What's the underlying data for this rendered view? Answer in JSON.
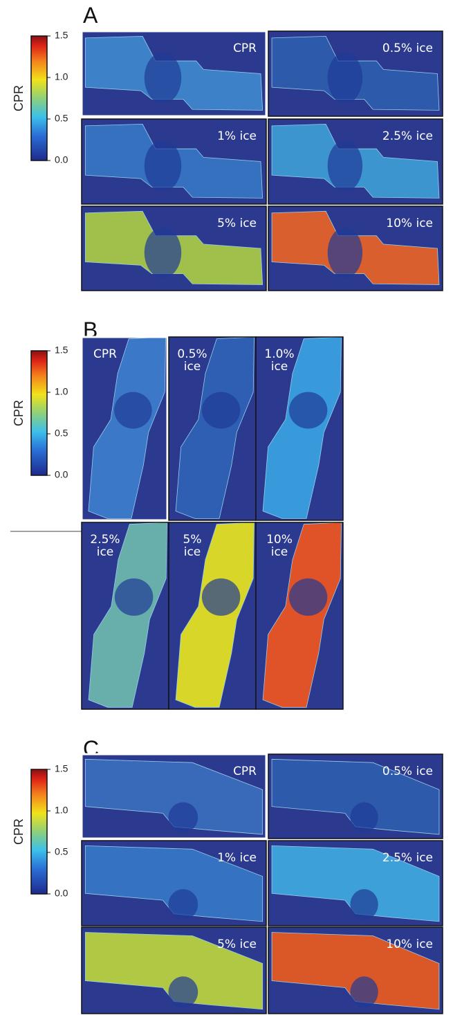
{
  "panels": [
    {
      "label": "A",
      "colorbar": {
        "title": "CPR",
        "ticks": [
          "1.5",
          "1.0",
          "0.5",
          "0.0"
        ]
      },
      "tiles": [
        {
          "label": [
            "CPR"
          ]
        },
        {
          "label": [
            "0.5% ice"
          ]
        },
        {
          "label": [
            "1% ice"
          ]
        },
        {
          "label": [
            "2.5% ice"
          ]
        },
        {
          "label": [
            "5% ice"
          ]
        },
        {
          "label": [
            "10% ice"
          ]
        }
      ]
    },
    {
      "label": "B",
      "colorbar": {
        "title": "CPR",
        "ticks": [
          "1.5",
          "1.0",
          "0.5",
          "0.0"
        ]
      },
      "tiles": [
        {
          "label": [
            "CPR"
          ]
        },
        {
          "label": [
            "0.5%",
            "ice"
          ]
        },
        {
          "label": [
            "1.0%",
            "ice"
          ]
        },
        {
          "label": [
            "2.5%",
            "ice"
          ]
        },
        {
          "label": [
            "5%",
            "ice"
          ]
        },
        {
          "label": [
            "10%",
            "ice"
          ]
        }
      ]
    },
    {
      "label": "C",
      "colorbar": {
        "title": "CPR",
        "ticks": [
          "1.5",
          "1.0",
          "0.5",
          "0.0"
        ]
      },
      "tiles": [
        {
          "label": [
            "CPR"
          ]
        },
        {
          "label": [
            "0.5% ice"
          ]
        },
        {
          "label": [
            "1% ice"
          ]
        },
        {
          "label": [
            "2.5% ice"
          ]
        },
        {
          "label": [
            "5% ice"
          ]
        },
        {
          "label": [
            "10% ice"
          ]
        }
      ]
    }
  ]
}
